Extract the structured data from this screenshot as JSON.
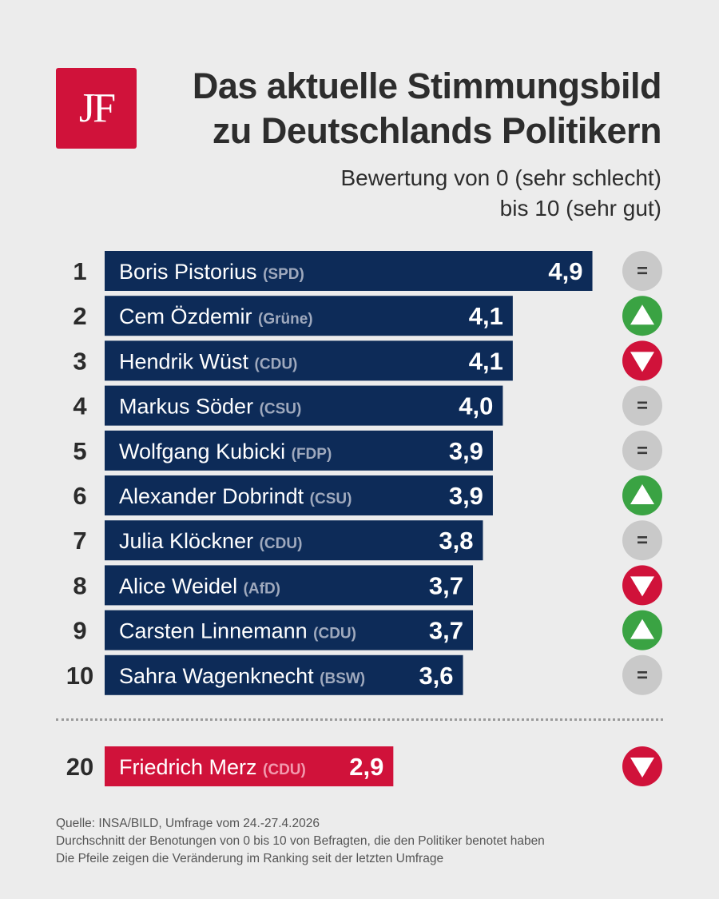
{
  "logo": {
    "text": "JF",
    "color": "#d0123a"
  },
  "title": {
    "line1": "Das aktuelle Stimmungsbild",
    "line2": "zu Deutschlands Politikern"
  },
  "subtitle": {
    "line1": "Bewertung von 0 (sehr schlecht)",
    "line2": "bis 10 (sehr gut)"
  },
  "colors": {
    "bar": "#0d2b58",
    "highlight_bar": "#d0123a",
    "up": "#3aa343",
    "down": "#d0123a",
    "same": "#c9c9c9"
  },
  "chart_data": {
    "type": "bar",
    "orientation": "horizontal",
    "categories": [
      "Boris Pistorius",
      "Cem Özdemir",
      "Hendrik Wüst",
      "Markus Söder",
      "Wolfgang Kubicki",
      "Alexander Dobrindt",
      "Julia Klöckner",
      "Alice Weidel",
      "Carsten Linnemann",
      "Sahra Wagenknecht",
      "Friedrich Merz"
    ],
    "xlim": [
      0,
      10
    ],
    "rows": [
      {
        "rank": "1",
        "name": "Boris Pistorius",
        "party": "(SPD)",
        "value": 4.9,
        "label": "4,9",
        "trend": "same"
      },
      {
        "rank": "2",
        "name": "Cem Özdemir",
        "party": "(Grüne)",
        "value": 4.1,
        "label": "4,1",
        "trend": "up"
      },
      {
        "rank": "3",
        "name": "Hendrik Wüst",
        "party": "(CDU)",
        "value": 4.1,
        "label": "4,1",
        "trend": "down"
      },
      {
        "rank": "4",
        "name": "Markus Söder",
        "party": "(CSU)",
        "value": 4.0,
        "label": "4,0",
        "trend": "same"
      },
      {
        "rank": "5",
        "name": "Wolfgang Kubicki",
        "party": "(FDP)",
        "value": 3.9,
        "label": "3,9",
        "trend": "same"
      },
      {
        "rank": "6",
        "name": "Alexander Dobrindt",
        "party": "(CSU)",
        "value": 3.9,
        "label": "3,9",
        "trend": "up"
      },
      {
        "rank": "7",
        "name": "Julia Klöckner",
        "party": "(CDU)",
        "value": 3.8,
        "label": "3,8",
        "trend": "same"
      },
      {
        "rank": "8",
        "name": "Alice Weidel",
        "party": "(AfD)",
        "value": 3.7,
        "label": "3,7",
        "trend": "down"
      },
      {
        "rank": "9",
        "name": "Carsten Linnemann",
        "party": "(CDU)",
        "value": 3.7,
        "label": "3,7",
        "trend": "up"
      },
      {
        "rank": "10",
        "name": "Sahra Wagenknecht",
        "party": "(BSW)",
        "value": 3.6,
        "label": "3,6",
        "trend": "same"
      },
      {
        "rank": "20",
        "name": "Friedrich Merz",
        "party": "(CDU)",
        "value": 2.9,
        "label": "2,9",
        "trend": "down",
        "highlight": true
      }
    ],
    "same_symbol": "="
  },
  "footer": {
    "line1": "Quelle: INSA/BILD, Umfrage vom 24.-27.4.2026",
    "line2": "Durchschnitt der Benotungen von 0 bis 10 von Befragten, die den Politiker benotet haben",
    "line3": "Die Pfeile zeigen die Veränderung im Ranking seit der letzten Umfrage"
  }
}
